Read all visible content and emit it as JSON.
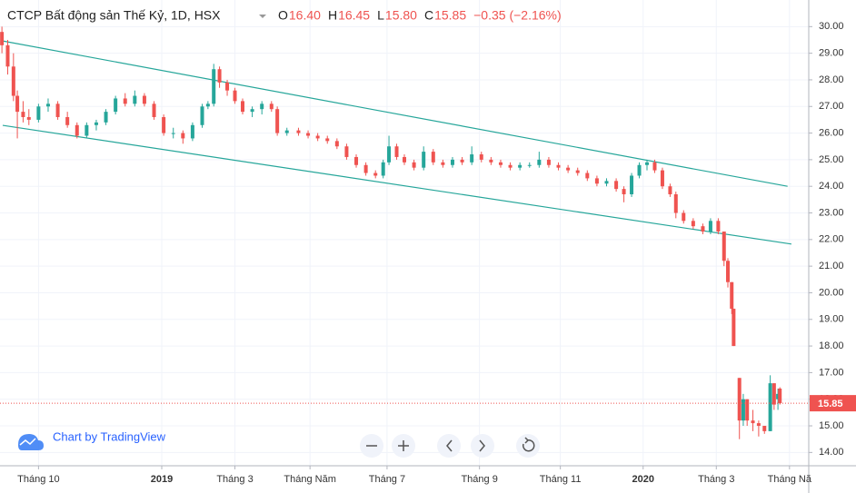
{
  "chart_data": {
    "type": "candlestick",
    "title": "CTCP Bất động sản Thế Kỷ, 1D, HSX",
    "ohlc": [
      {
        "label": "O",
        "value": "16.40"
      },
      {
        "label": "H",
        "value": "16.45"
      },
      {
        "label": "L",
        "value": "15.80"
      },
      {
        "label": "C",
        "value": "15.85"
      }
    ],
    "change": "−0.35 (−2.16%)",
    "credit": "Chart by TradingView",
    "up_color": "#26a69a",
    "down_color": "#ef5350",
    "line_color": "#26a69a",
    "xlim": [
      0,
      420
    ],
    "xticks": [
      {
        "value": 20,
        "label": "Tháng 10"
      },
      {
        "value": 84,
        "label": "2019"
      },
      {
        "value": 122,
        "label": "Tháng 3"
      },
      {
        "value": 161,
        "label": "Tháng Năm"
      },
      {
        "value": 201,
        "label": "Tháng 7"
      },
      {
        "value": 249,
        "label": "Tháng 9"
      },
      {
        "value": 291,
        "label": "Tháng 11"
      },
      {
        "value": 334,
        "label": "2020"
      },
      {
        "value": 372,
        "label": "Tháng 3"
      },
      {
        "value": 410,
        "label": "Tháng Nă"
      }
    ],
    "ylim": [
      13.5,
      31
    ],
    "yticks": [
      {
        "value": 14,
        "label": "14.00"
      },
      {
        "value": 15,
        "label": "15.00"
      },
      {
        "value": 16,
        "label": "16.00"
      },
      {
        "value": 17,
        "label": "17.00"
      },
      {
        "value": 18,
        "label": "18.00"
      },
      {
        "value": 19,
        "label": "19.00"
      },
      {
        "value": 20,
        "label": "20.00"
      },
      {
        "value": 21,
        "label": "21.00"
      },
      {
        "value": 22,
        "label": "22.00"
      },
      {
        "value": 23,
        "label": "23.00"
      },
      {
        "value": 24,
        "label": "24.00"
      },
      {
        "value": 25,
        "label": "25.00"
      },
      {
        "value": 26,
        "label": "26.00"
      },
      {
        "value": 27,
        "label": "27.00"
      },
      {
        "value": 28,
        "label": "28.00"
      },
      {
        "value": 29,
        "label": "29.00"
      },
      {
        "value": 30,
        "label": "30.00"
      }
    ],
    "grid": true,
    "x": [
      1,
      4,
      7,
      9,
      12,
      15,
      20,
      25,
      30,
      35,
      40,
      45,
      50,
      55,
      60,
      65,
      70,
      75,
      80,
      85,
      90,
      95,
      100,
      105,
      108,
      111,
      114,
      118,
      122,
      126,
      131,
      136,
      141,
      144,
      149,
      155,
      160,
      165,
      170,
      175,
      180,
      185,
      190,
      195,
      199,
      202,
      206,
      210,
      215,
      220,
      225,
      230,
      235,
      240,
      245,
      250,
      255,
      260,
      265,
      270,
      275,
      280,
      285,
      290,
      295,
      300,
      305,
      310,
      315,
      320,
      324,
      328,
      332,
      336,
      340,
      344,
      348,
      351,
      355,
      360,
      365,
      369,
      373,
      376,
      378,
      380,
      381,
      384,
      386,
      388,
      391,
      394,
      397,
      400,
      402,
      404,
      405
    ],
    "open": [
      29.8,
      29.3,
      28.5,
      27.4,
      26.8,
      26.6,
      26.5,
      27.0,
      27.1,
      26.6,
      26.3,
      25.9,
      26.3,
      26.4,
      26.8,
      27.3,
      27.1,
      27.4,
      27.1,
      26.6,
      26.0,
      26.0,
      25.8,
      26.3,
      27.0,
      27.1,
      28.4,
      27.9,
      27.6,
      27.2,
      26.8,
      26.9,
      27.1,
      26.9,
      26.0,
      26.1,
      26.0,
      25.9,
      25.8,
      25.7,
      25.5,
      25.1,
      24.8,
      24.5,
      24.4,
      24.9,
      25.5,
      25.1,
      24.9,
      24.7,
      25.3,
      24.9,
      24.8,
      25.0,
      24.9,
      25.2,
      25.0,
      24.9,
      24.8,
      24.7,
      24.8,
      24.8,
      25.0,
      24.8,
      24.7,
      24.6,
      24.5,
      24.3,
      24.1,
      24.2,
      23.9,
      23.7,
      24.4,
      24.8,
      24.9,
      24.6,
      24.0,
      23.7,
      23.0,
      22.7,
      22.5,
      22.3,
      22.7,
      22.3,
      21.2,
      20.4,
      19.4,
      16.8,
      15.2,
      16.0,
      15.2,
      15.1,
      15.0,
      14.8,
      16.6,
      16.0,
      16.4
    ],
    "high": [
      30.0,
      29.5,
      29.0,
      27.6,
      27.2,
      26.9,
      27.1,
      27.3,
      27.2,
      26.8,
      26.4,
      26.4,
      26.5,
      26.9,
      27.4,
      27.5,
      27.6,
      27.5,
      27.2,
      26.7,
      26.2,
      26.1,
      26.4,
      27.1,
      27.2,
      28.6,
      28.5,
      28.0,
      27.7,
      27.3,
      27.0,
      27.2,
      27.2,
      27.0,
      26.2,
      26.2,
      26.1,
      26.0,
      25.9,
      25.8,
      25.6,
      25.2,
      24.9,
      24.6,
      25.0,
      25.9,
      25.6,
      25.2,
      25.0,
      25.5,
      25.4,
      25.0,
      25.1,
      25.1,
      25.5,
      25.3,
      25.1,
      25.0,
      24.9,
      24.9,
      24.9,
      25.3,
      25.1,
      24.9,
      24.8,
      24.7,
      24.6,
      24.4,
      24.3,
      24.3,
      24.0,
      24.5,
      24.9,
      25.0,
      25.0,
      24.7,
      24.1,
      23.8,
      23.1,
      22.8,
      22.6,
      22.8,
      22.8,
      22.3,
      21.3,
      20.4,
      19.4,
      16.8,
      16.2,
      16.0,
      15.6,
      15.2,
      15.0,
      16.9,
      16.6,
      16.4,
      16.45
    ],
    "low": [
      29.0,
      28.2,
      27.2,
      25.8,
      26.4,
      26.3,
      26.4,
      26.8,
      26.5,
      26.2,
      25.8,
      25.8,
      26.1,
      26.3,
      26.7,
      27.0,
      27.0,
      27.0,
      26.5,
      25.9,
      25.8,
      25.6,
      25.7,
      26.2,
      26.9,
      27.0,
      27.7,
      27.4,
      27.1,
      26.7,
      26.6,
      26.7,
      26.8,
      25.9,
      25.9,
      25.9,
      25.8,
      25.7,
      25.6,
      25.4,
      25.0,
      24.7,
      24.4,
      24.3,
      24.3,
      24.8,
      25.0,
      24.8,
      24.6,
      24.6,
      24.8,
      24.7,
      24.7,
      24.8,
      24.8,
      24.9,
      24.8,
      24.7,
      24.6,
      24.6,
      24.7,
      24.7,
      24.7,
      24.6,
      24.5,
      24.4,
      24.2,
      24.0,
      24.0,
      23.8,
      23.4,
      23.6,
      24.3,
      24.6,
      24.5,
      23.9,
      23.6,
      22.8,
      22.6,
      22.4,
      22.2,
      22.2,
      22.2,
      21.0,
      20.2,
      19.2,
      18.0,
      14.5,
      15.0,
      15.0,
      14.8,
      14.6,
      14.7,
      14.8,
      15.6,
      15.6,
      15.8
    ],
    "close": [
      29.3,
      28.5,
      27.4,
      26.8,
      26.6,
      26.5,
      27.0,
      27.1,
      26.6,
      26.3,
      25.9,
      26.3,
      26.4,
      26.8,
      27.3,
      27.1,
      27.4,
      27.1,
      26.6,
      26.0,
      26.0,
      25.8,
      26.3,
      27.0,
      27.1,
      28.4,
      27.9,
      27.6,
      27.2,
      26.8,
      26.9,
      27.1,
      26.9,
      26.0,
      26.1,
      26.0,
      25.9,
      25.8,
      25.7,
      25.5,
      25.1,
      24.8,
      24.5,
      24.4,
      24.9,
      25.5,
      25.1,
      24.9,
      24.7,
      25.3,
      24.9,
      24.8,
      25.0,
      24.9,
      25.2,
      25.0,
      24.9,
      24.8,
      24.7,
      24.8,
      24.8,
      25.0,
      24.8,
      24.7,
      24.6,
      24.5,
      24.3,
      24.1,
      24.2,
      23.9,
      23.7,
      24.4,
      24.8,
      24.9,
      24.6,
      24.0,
      23.7,
      23.0,
      22.7,
      22.5,
      22.3,
      22.7,
      22.3,
      21.2,
      20.4,
      19.4,
      18.0,
      15.2,
      16.0,
      15.2,
      15.1,
      15.0,
      14.8,
      16.6,
      15.8,
      16.2,
      15.85
    ],
    "channels": [
      {
        "x": [
          1.4,
          409
        ],
        "values": [
          29.46,
          24.0
        ]
      },
      {
        "x": [
          1.4,
          411
        ],
        "values": [
          26.29,
          21.83
        ]
      }
    ]
  }
}
